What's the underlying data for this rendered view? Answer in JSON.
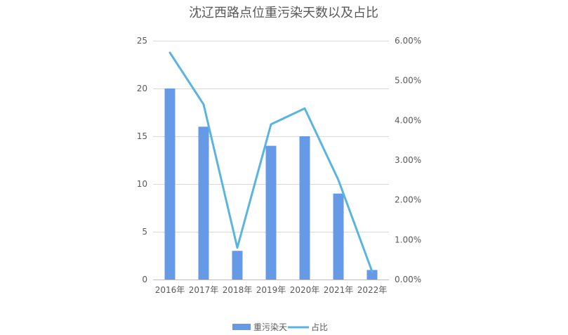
{
  "chart_data": {
    "type": "bar+line",
    "title": "沈辽西路点位重污染天数以及占比",
    "categories": [
      "2016年",
      "2017年",
      "2018年",
      "2019年",
      "2020年",
      "2021年",
      "2022年"
    ],
    "series": [
      {
        "name": "重污染天",
        "type": "bar",
        "axis": "left",
        "values": [
          20,
          16,
          3,
          14,
          15,
          9,
          1
        ],
        "color": "#6699e6"
      },
      {
        "name": "占比",
        "type": "line",
        "axis": "right",
        "values": [
          0.057,
          0.044,
          0.008,
          0.039,
          0.043,
          0.025,
          0.002
        ],
        "color": "#5ab4e0"
      }
    ],
    "left_axis": {
      "ylim": [
        0,
        25
      ],
      "ticks": [
        0,
        5,
        10,
        15,
        20,
        25
      ],
      "tick_labels": [
        "0",
        "5",
        "10",
        "15",
        "20",
        "25"
      ]
    },
    "right_axis": {
      "ylim": [
        0,
        0.06
      ],
      "ticks": [
        0,
        0.01,
        0.02,
        0.03,
        0.04,
        0.05,
        0.06
      ],
      "tick_labels": [
        "0.00%",
        "1.00%",
        "2.00%",
        "3.00%",
        "4.00%",
        "5.00%",
        "6.00%"
      ]
    },
    "grid": true,
    "legend": {
      "position": "bottom",
      "entries": [
        "重污染天",
        "占比"
      ]
    }
  }
}
